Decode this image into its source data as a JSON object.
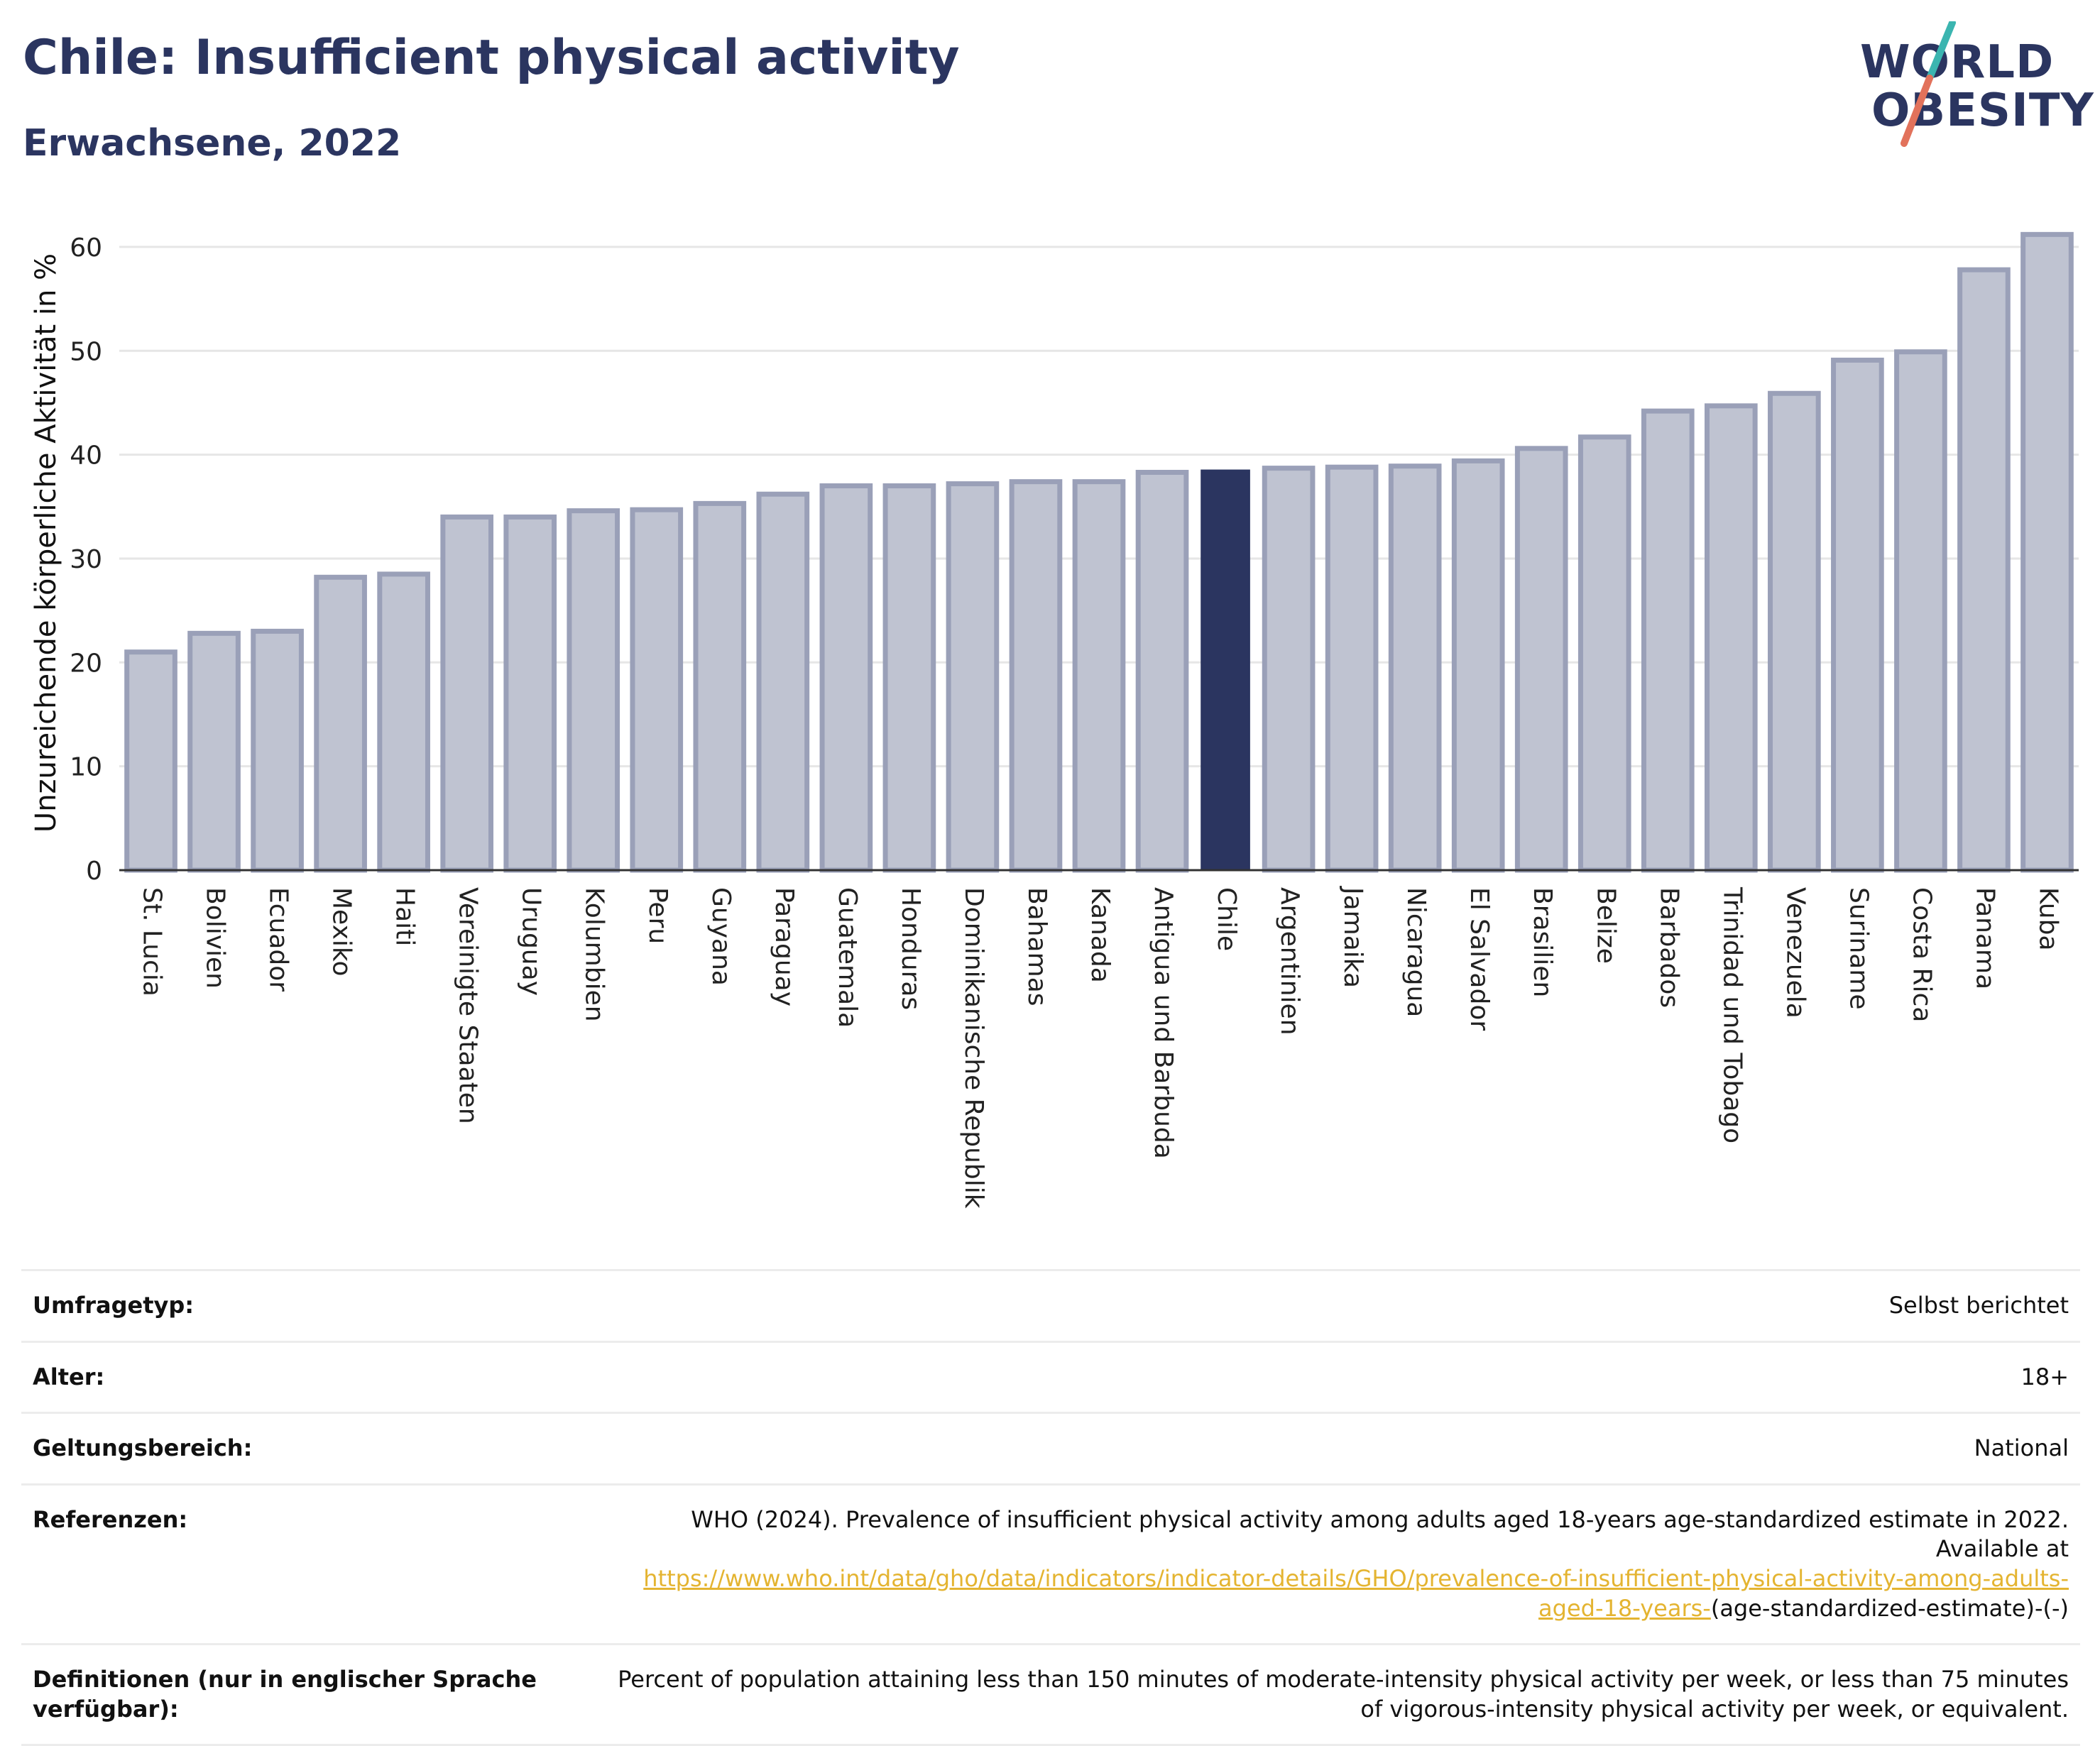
{
  "header": {
    "title": "Chile: Insufficient physical activity",
    "subtitle": "Erwachsene, 2022"
  },
  "logo": {
    "line1": "WORLD",
    "line2": "OBESITY",
    "colors": {
      "text": "#2b3560",
      "slash_top": "#3bb5b0",
      "slash_bottom": "#e2725b"
    }
  },
  "chart_data": {
    "type": "bar",
    "title": "",
    "xlabel": "",
    "ylabel": "Unzureichende körperliche Aktivität in %",
    "ylim": [
      0,
      63
    ],
    "yticks": [
      0,
      10,
      20,
      30,
      40,
      50,
      60
    ],
    "grid": true,
    "highlight": "Chile",
    "colors": {
      "bar": "#bfc3d1",
      "bar_border": "#9aa0b8",
      "highlight": "#2b3560"
    },
    "categories": [
      "St. Lucia",
      "Bolivien",
      "Ecuador",
      "Mexiko",
      "Haiti",
      "Vereinigte Staaten",
      "Uruguay",
      "Kolumbien",
      "Peru",
      "Guyana",
      "Paraguay",
      "Guatemala",
      "Honduras",
      "Dominikanische Republik",
      "Bahamas",
      "Kanada",
      "Antigua und Barbuda",
      "Chile",
      "Argentinien",
      "Jamaika",
      "Nicaragua",
      "El Salvador",
      "Brasilien",
      "Belize",
      "Barbados",
      "Trinidad und Tobago",
      "Venezuela",
      "Suriname",
      "Costa Rica",
      "Panama",
      "Kuba"
    ],
    "values": [
      21.0,
      22.8,
      23.0,
      28.2,
      28.5,
      34.0,
      34.0,
      34.6,
      34.7,
      35.3,
      36.2,
      37.0,
      37.0,
      37.2,
      37.4,
      37.4,
      38.3,
      38.5,
      38.7,
      38.8,
      38.9,
      39.4,
      40.6,
      41.7,
      44.2,
      44.7,
      45.9,
      49.1,
      49.9,
      57.8,
      61.2
    ]
  },
  "meta": {
    "rows": [
      {
        "label": "Umfragetyp:",
        "value": "Selbst berichtet"
      },
      {
        "label": "Alter:",
        "value": "18+"
      },
      {
        "label": "Geltungsbereich:",
        "value": "National"
      }
    ],
    "references": {
      "label": "Referenzen:",
      "text": "WHO (2024). Prevalence of insufficient physical activity among adults aged 18-years age-standardized estimate in 2022. Available at",
      "link": "https://www.who.int/data/gho/data/indicators/indicator-details/GHO/prevalence-of-insufficient-physical-activity-among-adults-aged-18-years-",
      "suffix": "(age-standardized-estimate)-(-)"
    },
    "definitions": {
      "label": "Definitionen (nur in englischer Sprache verfügbar):",
      "value": "Percent of population attaining less than 150 minutes of moderate-intensity physical activity per week, or less than 75 minutes of vigorous-intensity physical activity per week, or equivalent."
    }
  }
}
